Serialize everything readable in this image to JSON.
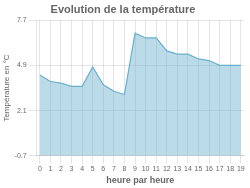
{
  "chart_data": {
    "type": "area",
    "title": "Evolution de la température",
    "xlabel": "heure par heure",
    "ylabel": "Température en °C",
    "x": [
      0,
      1,
      2,
      3,
      4,
      5,
      6,
      7,
      8,
      9,
      10,
      11,
      12,
      13,
      14,
      15,
      16,
      17,
      18,
      19
    ],
    "values": [
      4.3,
      3.9,
      3.8,
      3.6,
      3.6,
      4.8,
      3.7,
      3.3,
      3.1,
      6.9,
      6.6,
      6.6,
      5.8,
      5.6,
      5.6,
      5.3,
      5.2,
      4.9,
      4.9,
      4.9
    ],
    "color": "#6ab0cc",
    "xlim": [
      -0.3,
      19.3
    ],
    "xticks": [
      0,
      1,
      2,
      3,
      4,
      5,
      6,
      7,
      8,
      9,
      10,
      11,
      12,
      13,
      14,
      15,
      16,
      17,
      18,
      19
    ],
    "ylim": [
      -0.7,
      7.7
    ],
    "yticks": [
      -0.7,
      2.1,
      4.9,
      7.7
    ],
    "grid": true
  }
}
